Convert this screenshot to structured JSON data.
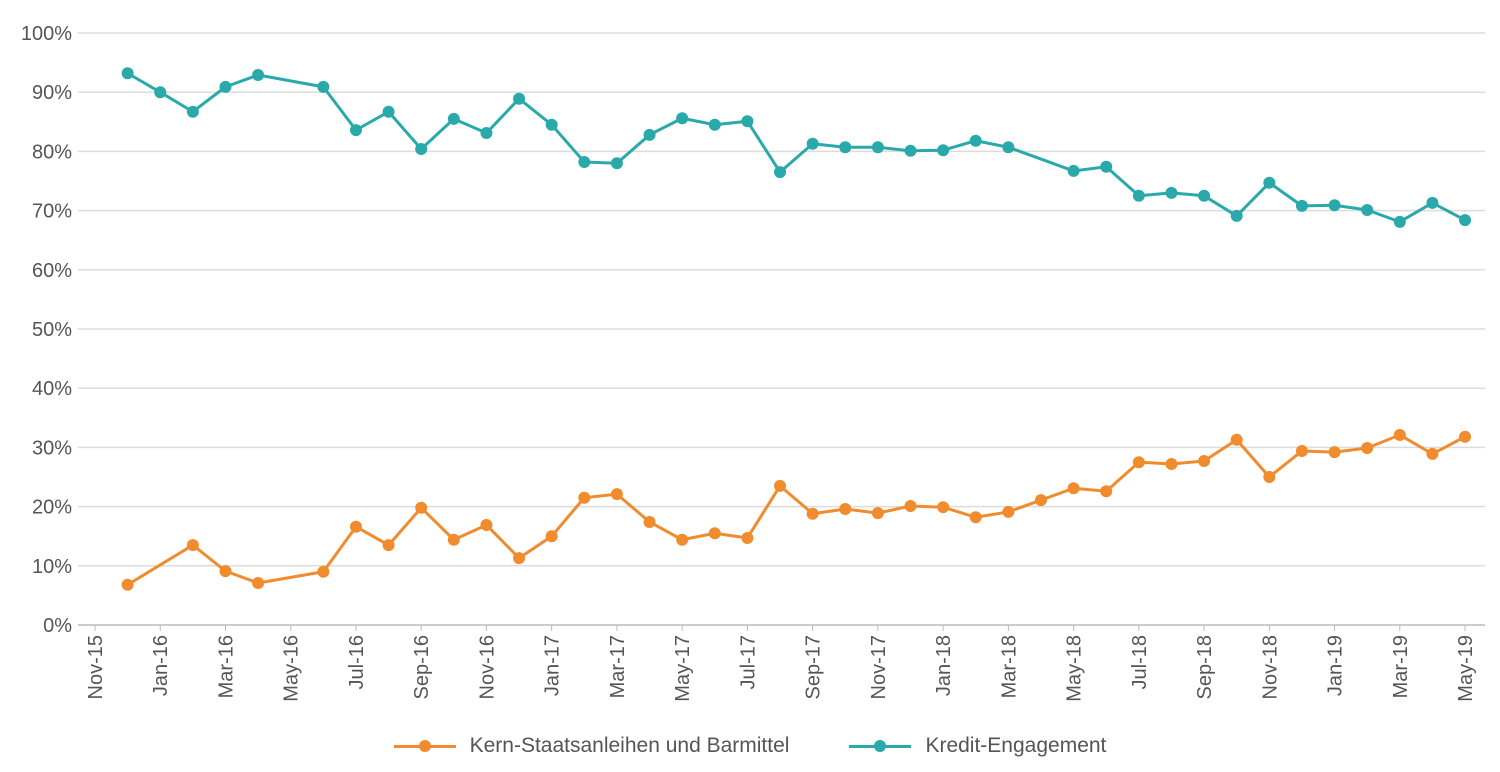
{
  "chart_data": {
    "type": "line",
    "title": "",
    "xlabel": "",
    "ylabel": "",
    "ylim": [
      0,
      100
    ],
    "y_ticks": [
      "0%",
      "10%",
      "20%",
      "30%",
      "40%",
      "50%",
      "60%",
      "70%",
      "80%",
      "90%",
      "100%"
    ],
    "x_ticks": [
      "Nov-15",
      "Jan-16",
      "Mar-16",
      "May-16",
      "Jul-16",
      "Sep-16",
      "Nov-16",
      "Jan-17",
      "Mar-17",
      "May-17",
      "Jul-17",
      "Sep-17",
      "Nov-17",
      "Jan-18",
      "Mar-18",
      "May-18",
      "Jul-18",
      "Sep-18",
      "Nov-18",
      "Jan-19",
      "Mar-19",
      "May-19"
    ],
    "grid": true,
    "legend_position": "bottom",
    "x": [
      "Dec-15",
      "Jan-16",
      "Feb-16",
      "Mar-16",
      "Apr-16",
      "Jun-16",
      "Jul-16",
      "Aug-16",
      "Sep-16",
      "Oct-16",
      "Nov-16",
      "Dec-16",
      "Jan-17",
      "Feb-17",
      "Mar-17",
      "Apr-17",
      "May-17",
      "Jun-17",
      "Jul-17",
      "Aug-17",
      "Sep-17",
      "Oct-17",
      "Nov-17",
      "Dec-17",
      "Jan-18",
      "Feb-18",
      "Mar-18",
      "Apr-18",
      "May-18",
      "Jun-18",
      "Jul-18",
      "Aug-18",
      "Sep-18",
      "Oct-18",
      "Nov-18",
      "Dec-18",
      "Jan-19",
      "Feb-19",
      "Mar-19",
      "Apr-19",
      "May-19"
    ],
    "series": [
      {
        "name": "Kern-Staatsanleihen und Barmittel",
        "color": "#f08c2e",
        "values": [
          6.8,
          null,
          13.5,
          9.1,
          7.1,
          9.0,
          16.6,
          13.5,
          19.8,
          14.4,
          16.9,
          11.3,
          15.0,
          21.5,
          22.1,
          17.4,
          14.4,
          15.5,
          14.7,
          23.5,
          18.8,
          19.6,
          18.9,
          20.1,
          19.9,
          18.2,
          19.1,
          21.1,
          23.1,
          22.6,
          27.5,
          27.2,
          27.7,
          31.3,
          25.0,
          29.4,
          29.2,
          29.9,
          32.1,
          28.9,
          31.8
        ]
      },
      {
        "name": "Kredit-Engagement",
        "color": "#2aa9ab",
        "values": [
          93.2,
          90.0,
          86.7,
          90.9,
          92.9,
          90.9,
          83.6,
          86.7,
          80.4,
          85.5,
          83.1,
          88.9,
          84.5,
          78.2,
          78.0,
          82.8,
          85.6,
          84.5,
          85.1,
          76.5,
          81.3,
          80.7,
          80.7,
          80.1,
          80.2,
          81.8,
          80.7,
          null,
          76.7,
          77.4,
          72.5,
          73.0,
          72.5,
          69.1,
          74.7,
          70.8,
          70.9,
          70.1,
          68.1,
          71.3,
          68.4
        ]
      }
    ]
  }
}
